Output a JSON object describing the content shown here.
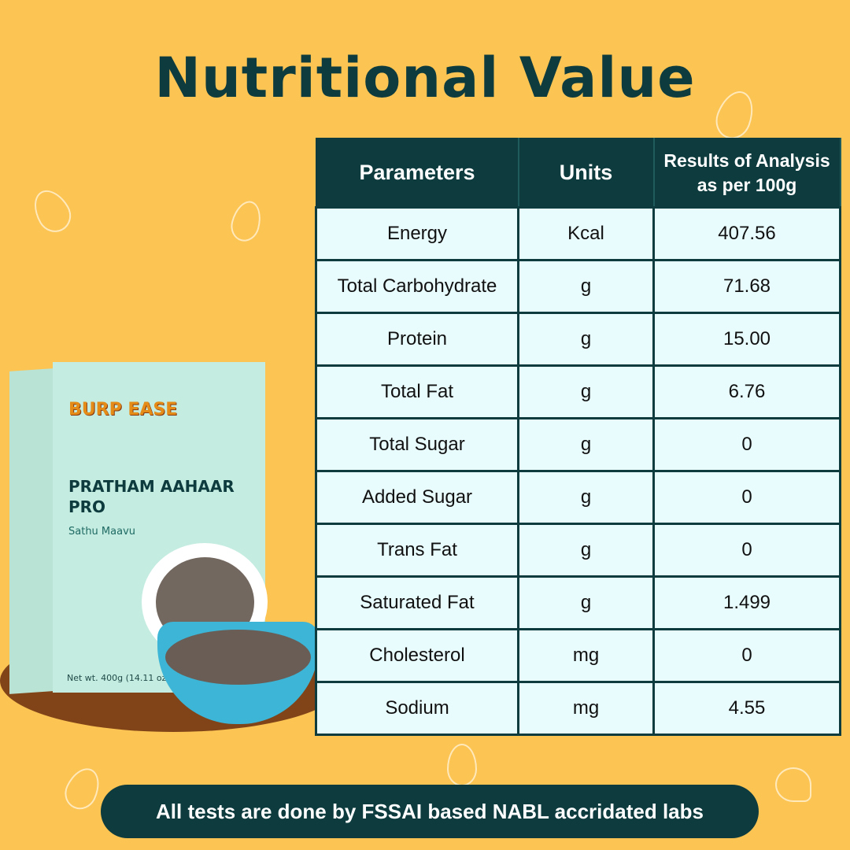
{
  "title": "Nutritional Value",
  "table": {
    "headers": [
      "Parameters",
      "Units",
      "Results of Analysis as per 100g"
    ],
    "rows": [
      [
        "Energy",
        "Kcal",
        "407.56"
      ],
      [
        "Total Carbohydrate",
        "g",
        "71.68"
      ],
      [
        "Protein",
        "g",
        "15.00"
      ],
      [
        "Total Fat",
        "g",
        "6.76"
      ],
      [
        "Total Sugar",
        "g",
        "0"
      ],
      [
        "Added Sugar",
        "g",
        "0"
      ],
      [
        "Trans Fat",
        "g",
        "0"
      ],
      [
        "Saturated Fat",
        "g",
        "1.499"
      ],
      [
        "Cholesterol",
        "mg",
        "0"
      ],
      [
        "Sodium",
        "mg",
        "4.55"
      ]
    ]
  },
  "product": {
    "brand": "BURP EASE",
    "name": "PRATHAM AAHAAR PRO",
    "variant": "Sathu Maavu",
    "net_weight": "Net wt. 400g (14.11 oz)"
  },
  "footer": "All tests are done by FSSAI based NABL accridated labs",
  "colors": {
    "background": "#fcc453",
    "dark_teal": "#0d3b3e",
    "cell": "#e8fbfd"
  }
}
